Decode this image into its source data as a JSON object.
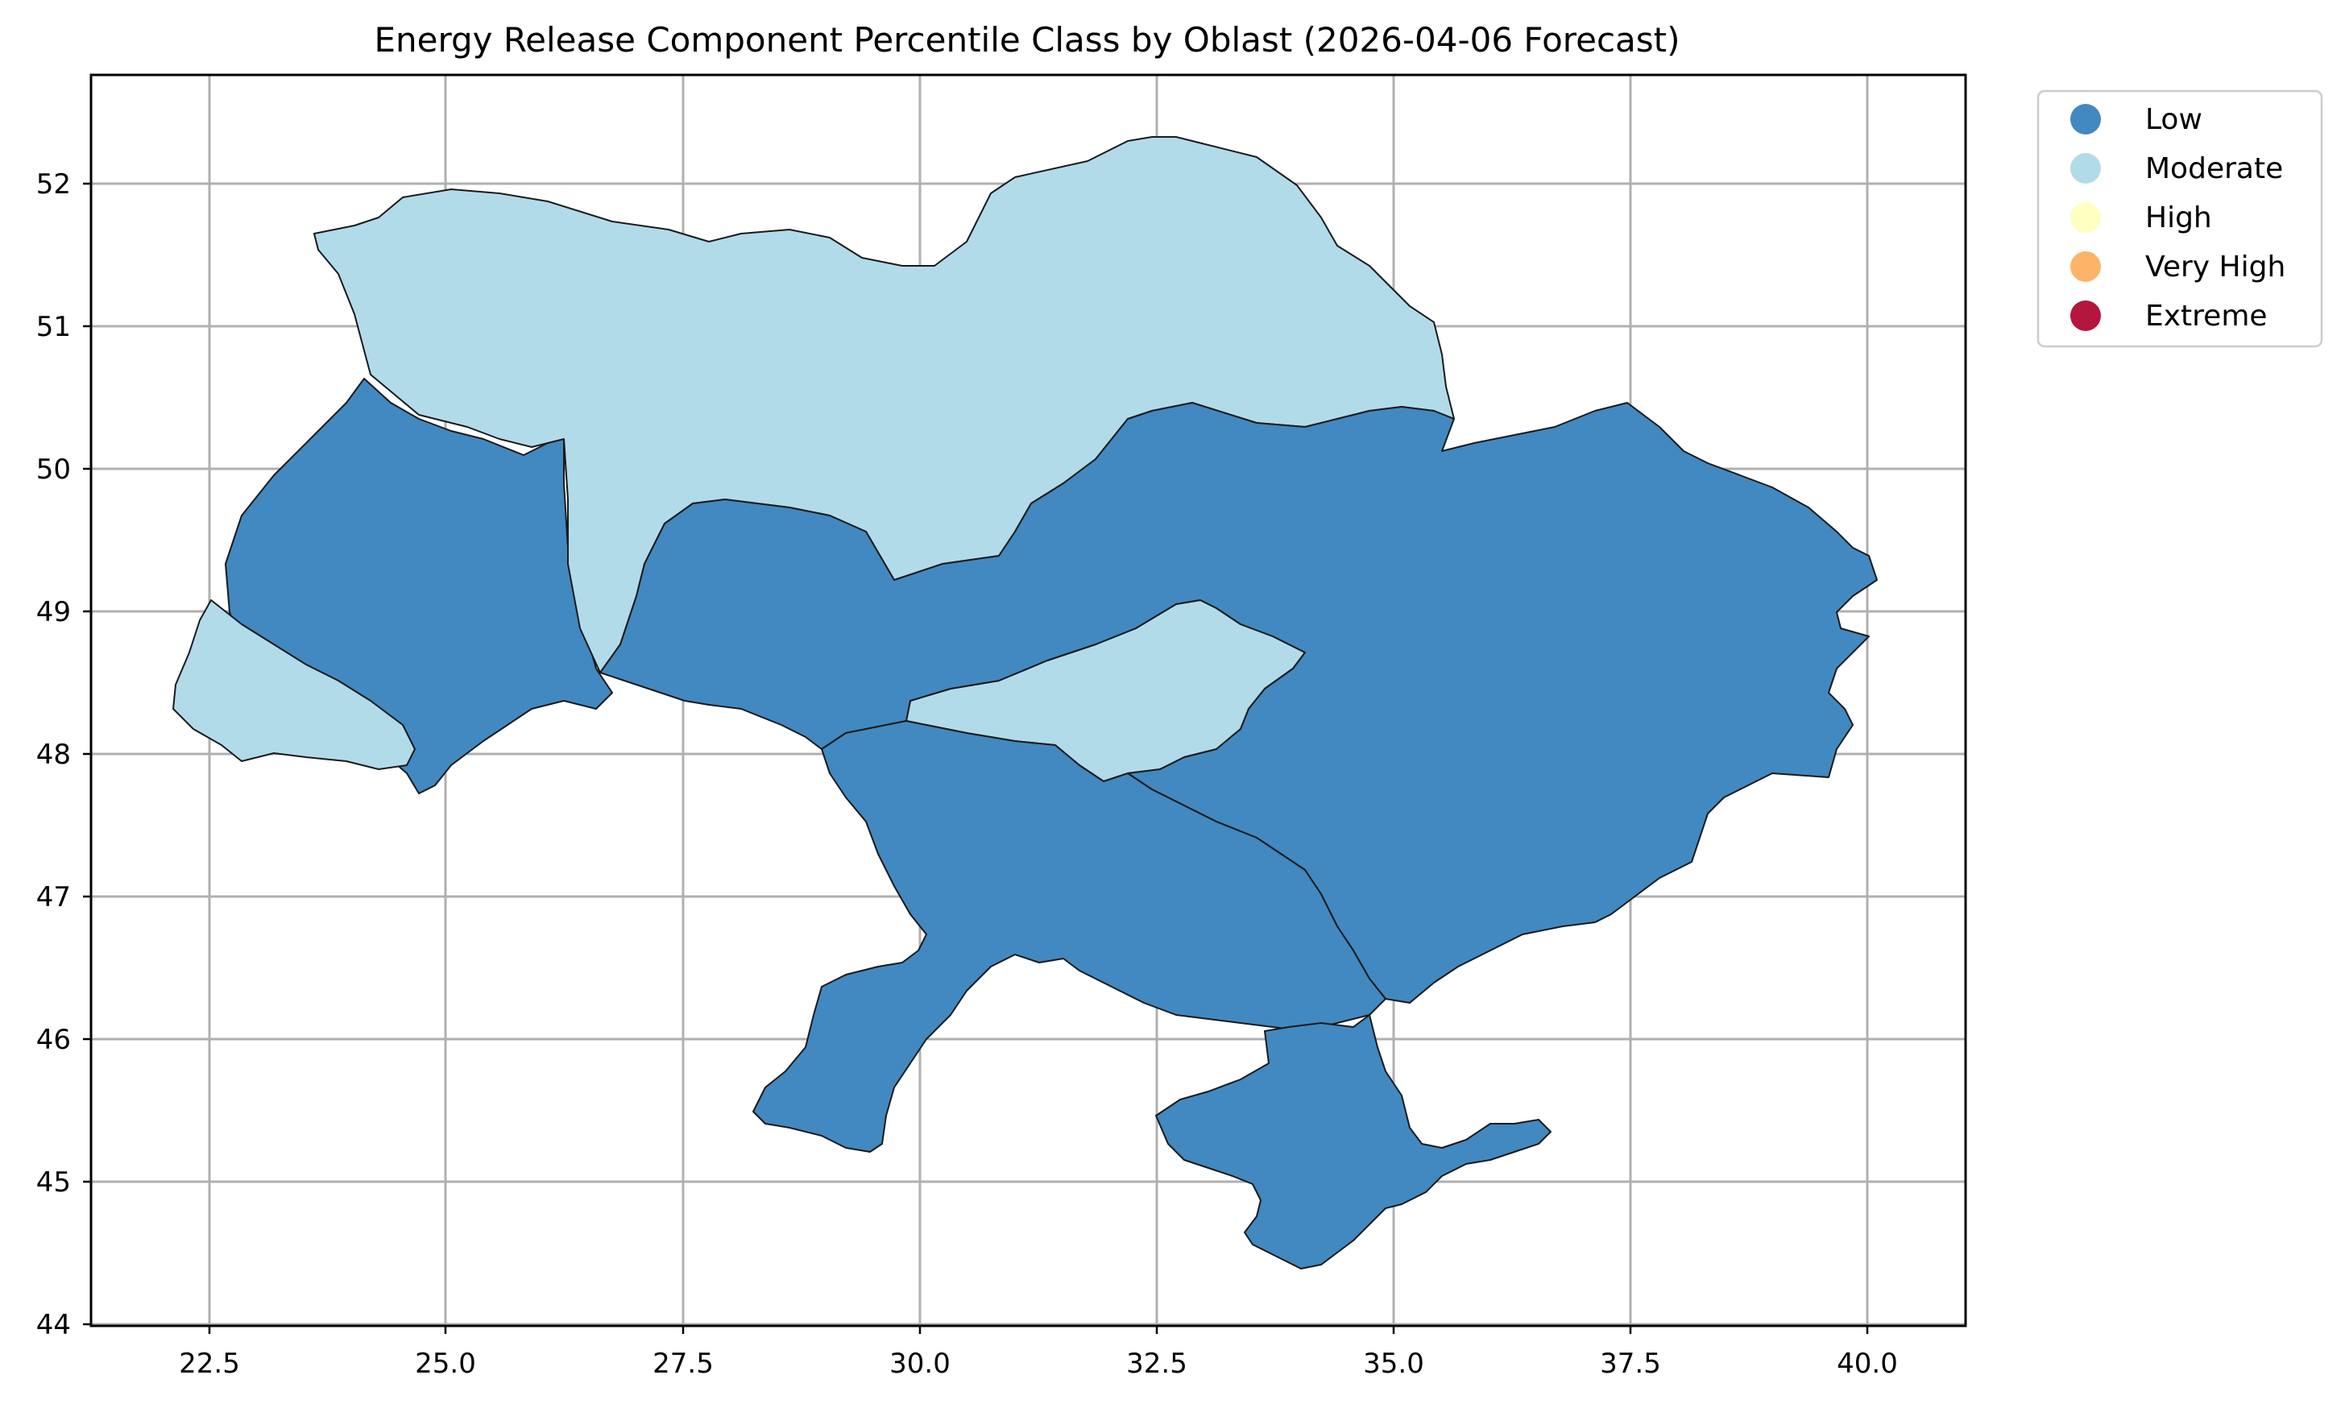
{
  "title": "Energy Release Component Percentile Class by Oblast (2026-04-06 Forecast)",
  "map": {
    "lon_range": [
      21.3,
      41.0
    ],
    "lat_range": [
      44.0,
      52.8
    ],
    "x_ticks": [
      "22.5",
      "25.0",
      "27.5",
      "30.0",
      "32.5",
      "35.0",
      "37.5",
      "40.0"
    ],
    "x_tick_values": [
      22.5,
      25.0,
      27.5,
      30.0,
      32.5,
      35.0,
      37.5,
      40.0
    ],
    "y_ticks": [
      "44",
      "45",
      "46",
      "47",
      "48",
      "49",
      "50",
      "51",
      "52"
    ],
    "y_tick_values": [
      44,
      45,
      46,
      47,
      48,
      49,
      50,
      51,
      52
    ],
    "grid": true,
    "legend_position": "upper-right-outside"
  },
  "legend": [
    {
      "label": "Low",
      "color": "#4189c0"
    },
    {
      "label": "Moderate",
      "color": "#b2dbea"
    },
    {
      "label": "High",
      "color": "#ffffc0"
    },
    {
      "label": "Very High",
      "color": "#fcb468"
    },
    {
      "label": "Extreme",
      "color": "#b4163e"
    }
  ],
  "classes": {
    "west_low": "Low",
    "zakarpattia": "Moderate",
    "north_moderate": "Moderate",
    "kirovohrad": "Moderate",
    "center_east_low": "Low",
    "south_low": "Low",
    "crimea": "Low"
  }
}
